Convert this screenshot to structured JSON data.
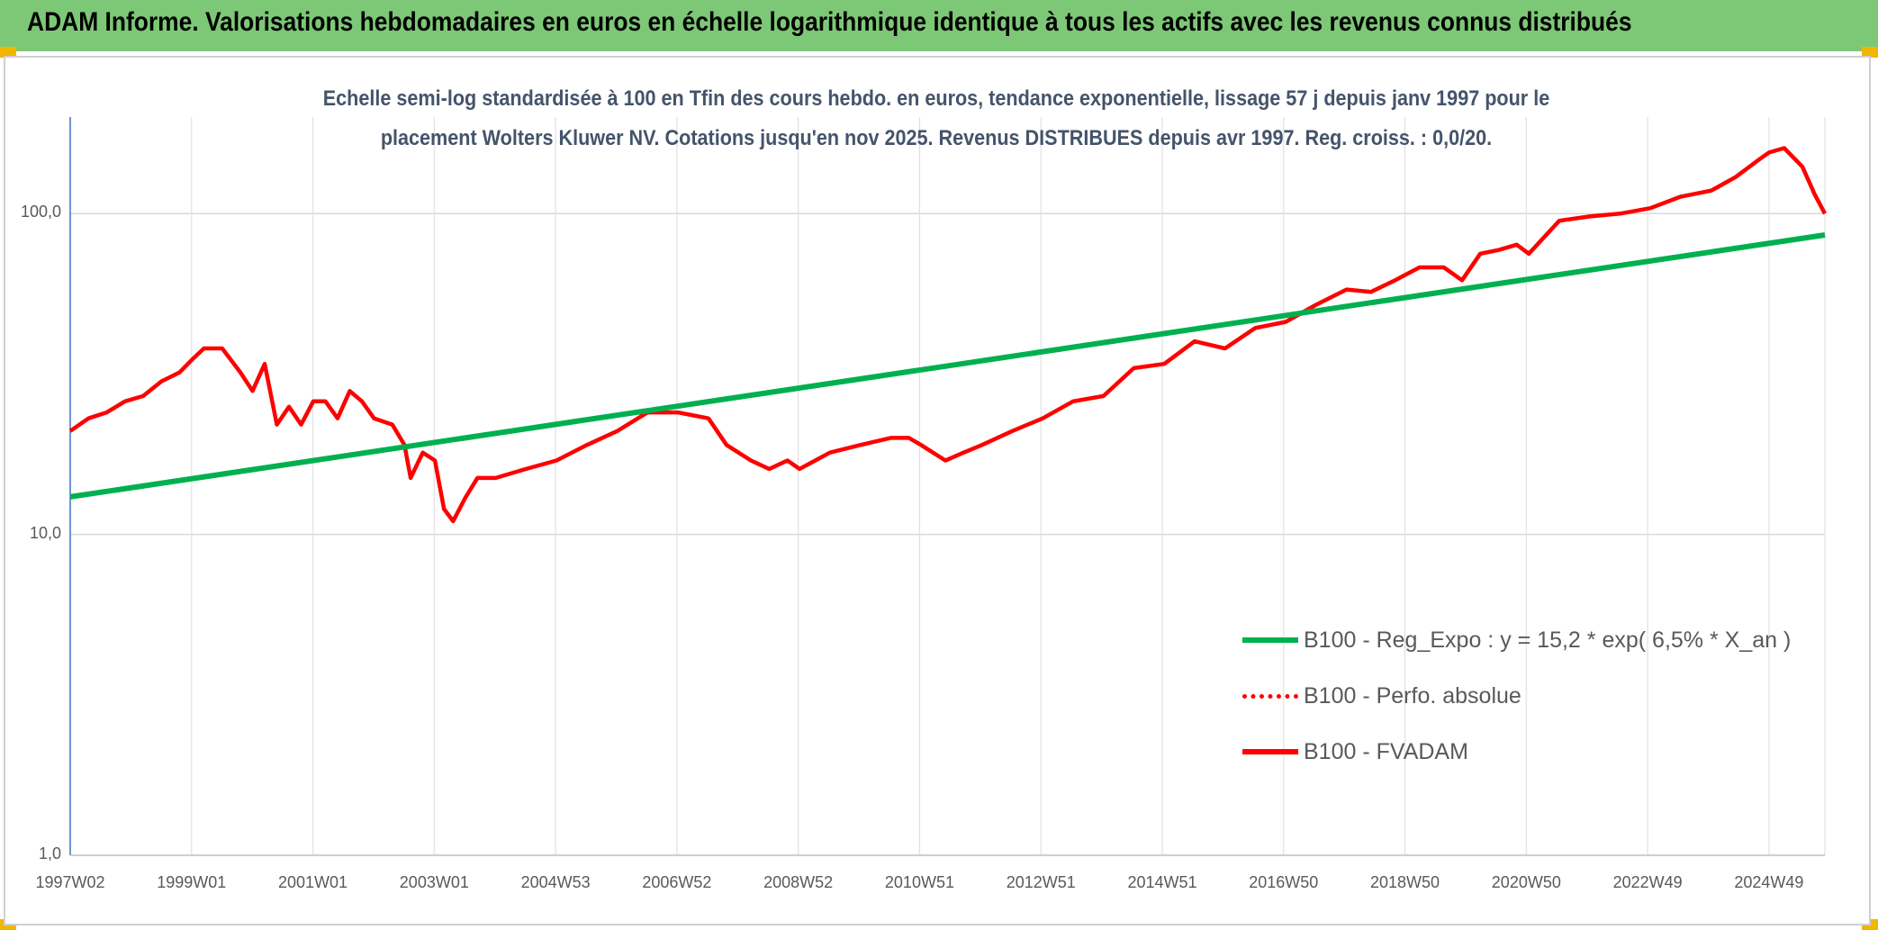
{
  "header": {
    "title": "ADAM Informe. Valorisations hebdomadaires en euros en échelle logarithmique identique à tous les actifs avec les revenus connus distribués"
  },
  "colors": {
    "banner": "#7dc876",
    "trend": "#00b050",
    "fvadam": "#ff0000",
    "accent_corner": "#f2b500"
  },
  "chart_data": {
    "type": "line",
    "title_line1": "Echelle semi-log standardisée à 100 en Tfin des cours hebdo. en euros, tendance exponentielle, lissage 57 j depuis janv 1997 pour le",
    "title_line2": "placement Wolters Kluwer NV. Cotations jusqu'en nov 2025. Revenus DISTRIBUES depuis avr 1997. Reg. croiss. : 0,0/20.",
    "y_scale": "log",
    "ylim": [
      1,
      200
    ],
    "y_ticks": [
      "1,0",
      "10,0",
      "100,0"
    ],
    "x_ticks": [
      "1997W02",
      "1999W01",
      "2001W01",
      "2003W01",
      "2004W53",
      "2006W52",
      "2008W52",
      "2010W51",
      "2012W51",
      "2014W51",
      "2016W50",
      "2018W50",
      "2020W50",
      "2022W49",
      "2024W49"
    ],
    "x_range": [
      1997.0,
      2025.87
    ],
    "grid": true,
    "legend_position": "bottom-right",
    "series": [
      {
        "name": "B100 - Reg_Expo : y = 15,2 * exp( 6,5% *  X_an )",
        "style": "solid",
        "color": "#00b050",
        "x": [
          1997.0,
          2025.87
        ],
        "y": [
          13.1,
          85.8
        ]
      },
      {
        "name": "B100 - Perfo. absolue",
        "style": "dotted",
        "color": "#ff0000",
        "x": [],
        "y": []
      },
      {
        "name": "B100 - FVADAM",
        "style": "solid",
        "color": "#ff0000",
        "x": [
          1997.0,
          1997.3,
          1997.6,
          1997.9,
          1998.2,
          1998.5,
          1998.8,
          1999.0,
          1999.2,
          1999.5,
          1999.8,
          2000.0,
          2000.2,
          2000.4,
          2000.6,
          2000.8,
          2001.0,
          2001.2,
          2001.4,
          2001.6,
          2001.8,
          2002.0,
          2002.3,
          2002.5,
          2002.6,
          2002.8,
          2003.0,
          2003.15,
          2003.3,
          2003.5,
          2003.7,
          2004.0,
          2004.5,
          2005.0,
          2005.5,
          2006.0,
          2006.5,
          2007.0,
          2007.5,
          2007.8,
          2008.2,
          2008.5,
          2008.8,
          2009.0,
          2009.5,
          2010.0,
          2010.5,
          2010.8,
          2011.0,
          2011.4,
          2011.7,
          2012.0,
          2012.5,
          2013.0,
          2013.5,
          2014.0,
          2014.5,
          2015.0,
          2015.5,
          2016.0,
          2016.5,
          2017.0,
          2017.5,
          2018.0,
          2018.4,
          2018.8,
          2019.2,
          2019.6,
          2019.9,
          2020.2,
          2020.5,
          2020.8,
          2021.0,
          2021.5,
          2022.0,
          2022.5,
          2023.0,
          2023.5,
          2024.0,
          2024.4,
          2024.8,
          2024.95,
          2025.2,
          2025.5,
          2025.7,
          2025.87
        ],
        "y": [
          21,
          23,
          24,
          26,
          27,
          30,
          32,
          35,
          38,
          38,
          32,
          28,
          34,
          22,
          25,
          22,
          26,
          26,
          23,
          28,
          26,
          23,
          22,
          19,
          15,
          18,
          17,
          12,
          11,
          13,
          15,
          15,
          16,
          17,
          19,
          21,
          24,
          24,
          23,
          19,
          17,
          16,
          17,
          16,
          18,
          19,
          20,
          20,
          19,
          17,
          18,
          19,
          21,
          23,
          26,
          27,
          33,
          34,
          40,
          38,
          44,
          46,
          52,
          58,
          57,
          62,
          68,
          68,
          62,
          75,
          77,
          80,
          75,
          95,
          98,
          100,
          104,
          113,
          118,
          130,
          148,
          155,
          160,
          140,
          115,
          100
        ]
      }
    ]
  }
}
